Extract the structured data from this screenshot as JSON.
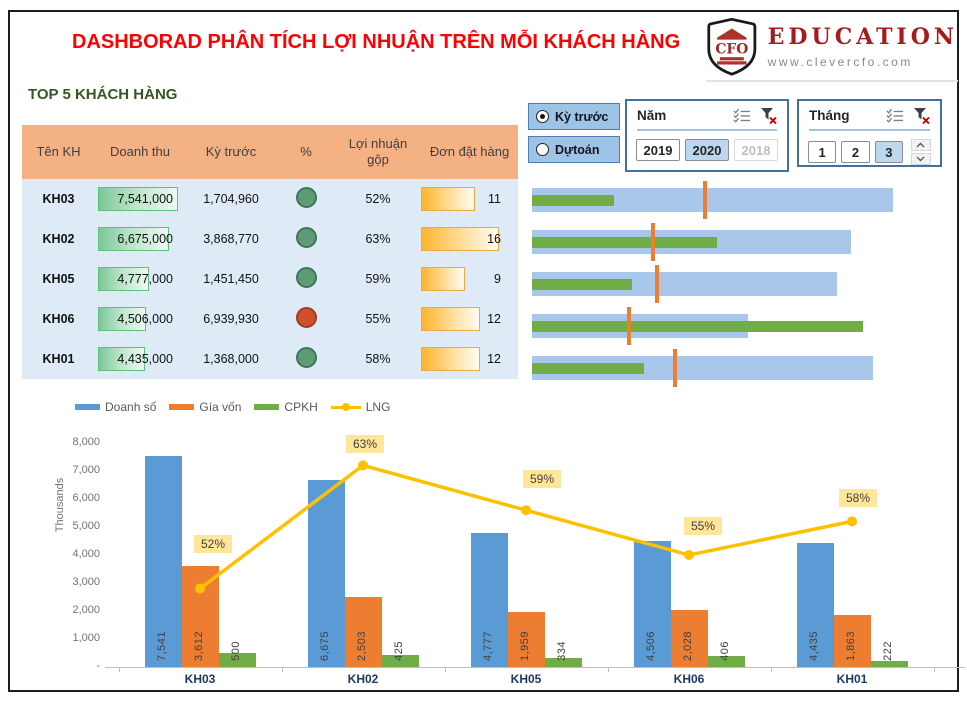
{
  "page": {
    "title": "DASHBORAD PHÂN TÍCH LỢI NHUẬN TRÊN MỖI KHÁCH HÀNG",
    "logo": {
      "shield_text": "CFO",
      "brand": "EDUCATION",
      "website": "www.clevercfo.com"
    },
    "section_title": "TOP 5 KHÁCH HÀNG"
  },
  "table": {
    "columns": [
      "Tên KH",
      "Doanh thu",
      "Kỳ trước",
      "%",
      "Lợi nhuận gộp",
      "Đơn đặt hàng"
    ],
    "max_doanh_thu": 7541000,
    "max_don_dat_hang": 16,
    "rows": [
      {
        "ten_kh": "KH03",
        "doanh_thu_display": "7,541,000",
        "doanh_thu_value": 7541000,
        "ky_truoc": "1,704,960",
        "status": "green",
        "loi_nhuan_gop": "52%",
        "don_dat_hang": 11
      },
      {
        "ten_kh": "KH02",
        "doanh_thu_display": "6,675,000",
        "doanh_thu_value": 6675000,
        "ky_truoc": "3,868,770",
        "status": "green",
        "loi_nhuan_gop": "63%",
        "don_dat_hang": 16
      },
      {
        "ten_kh": "KH05",
        "doanh_thu_display": "4,777,000",
        "doanh_thu_value": 4777000,
        "ky_truoc": "1,451,450",
        "status": "green",
        "loi_nhuan_gop": "59%",
        "don_dat_hang": 9
      },
      {
        "ten_kh": "KH06",
        "doanh_thu_display": "4,506,000",
        "doanh_thu_value": 4506000,
        "ky_truoc": "6,939,930",
        "status": "red",
        "loi_nhuan_gop": "55%",
        "don_dat_hang": 12
      },
      {
        "ten_kh": "KH01",
        "doanh_thu_display": "4,435,000",
        "doanh_thu_value": 4435000,
        "ky_truoc": "1,368,000",
        "status": "green",
        "loi_nhuan_gop": "58%",
        "don_dat_hang": 12
      }
    ]
  },
  "slicers": {
    "period": [
      {
        "label": "Kỳ trước",
        "selected": true
      },
      {
        "label": "Dựtoán",
        "selected": false
      }
    ],
    "nam": {
      "title": "Năm",
      "options": [
        {
          "label": "2019",
          "state": "active"
        },
        {
          "label": "2020",
          "state": "selected"
        },
        {
          "label": "2018",
          "state": "empty"
        }
      ]
    },
    "thang": {
      "title": "Tháng",
      "options": [
        {
          "label": "1",
          "state": "active"
        },
        {
          "label": "2",
          "state": "active"
        },
        {
          "label": "3",
          "state": "selected"
        }
      ]
    }
  },
  "chart_data": [
    {
      "type": "bar",
      "subtype": "grouped-bars-with-line",
      "categories": [
        "KH03",
        "KH02",
        "KH05",
        "KH06",
        "KH01"
      ],
      "series": [
        {
          "name": "Doanh số",
          "color": "#5B9BD5",
          "values": [
            7541,
            6675,
            4777,
            4506,
            4435
          ],
          "labels": [
            "7,541",
            "6,675",
            "4,777",
            "4,506",
            "4,435"
          ]
        },
        {
          "name": "Gía vốn",
          "color": "#ED7D31",
          "values": [
            3612,
            2503,
            1959,
            2028,
            1863
          ],
          "labels": [
            "3,612",
            "2,503",
            "1,959",
            "2,028",
            "1,863"
          ]
        },
        {
          "name": "CPKH",
          "color": "#70AD47",
          "values": [
            500,
            425,
            334,
            406,
            222
          ],
          "labels": [
            "500",
            "425",
            "334",
            "406",
            "222"
          ]
        }
      ],
      "line": {
        "name": "LNG",
        "color": "#FFC000",
        "values_pct": [
          52,
          63,
          59,
          55,
          58
        ],
        "labels": [
          "52%",
          "63%",
          "59%",
          "55%",
          "58%"
        ],
        "secondary_axis_range": [
          45,
          65
        ]
      },
      "ylabel": "Thousands",
      "ylim": [
        0,
        8000
      ],
      "yticks": [
        "8,000",
        "7,000",
        "6,000",
        "5,000",
        "4,000",
        "3,000",
        "2,000",
        "1,000",
        "-"
      ],
      "grid": false,
      "legend_position": "top-left"
    },
    {
      "type": "bar",
      "subtype": "bullet-horizontal",
      "categories": [
        "KH03",
        "KH02",
        "KH05",
        "KH06",
        "KH01"
      ],
      "units": "percent of plot width",
      "series": [
        {
          "name": "outer-bar-blue",
          "color": "#A9C7EA",
          "values_pct": [
            86.0,
            76.0,
            72.6,
            51.4,
            81.2
          ]
        },
        {
          "name": "inner-bar-green",
          "color": "#70AD47",
          "values_pct": [
            19.5,
            44.0,
            23.8,
            78.8,
            26.7
          ]
        },
        {
          "name": "target-marker-orange",
          "color": "#ED7D31",
          "values_pct": [
            41.2,
            28.8,
            29.8,
            23.1,
            34.0
          ]
        }
      ],
      "grid": false,
      "legend_position": "none"
    }
  ],
  "colors": {
    "title_red": "#FF0000",
    "section_green": "#375623",
    "table_header": "#F4B183",
    "table_rows": "#DEEBF7",
    "databar_green": "#7CC798",
    "databar_orange": "#FFB42D",
    "status_green": "#5E9C76",
    "status_red": "#D0502E",
    "slicer_fill": "#9DC3E6",
    "slicer_selected": "#BDD7EE",
    "brand_red": "#A61C1C",
    "line_label_bg": "#FFE699"
  }
}
